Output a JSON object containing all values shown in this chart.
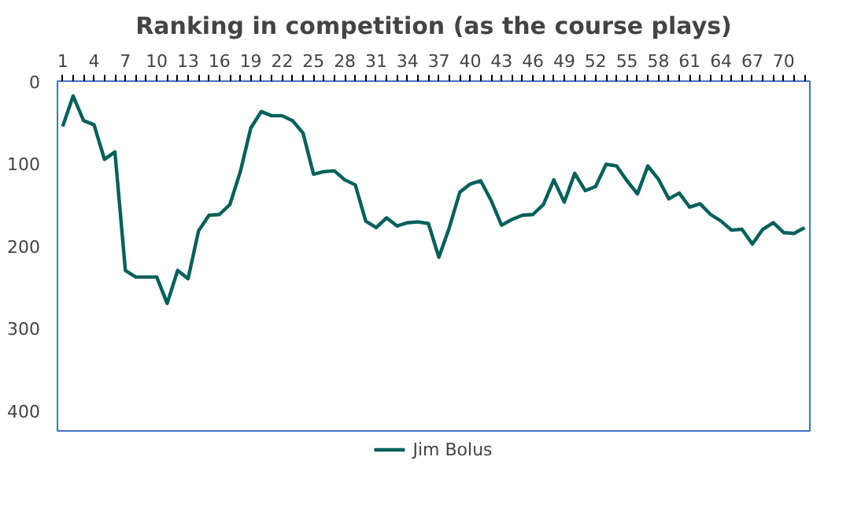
{
  "chart_data": {
    "type": "line",
    "title": "Ranking in competition (as the course plays)",
    "categories": [
      "1",
      null,
      null,
      "4",
      null,
      null,
      "7",
      null,
      null,
      "10",
      null,
      null,
      "13",
      null,
      null,
      "16",
      null,
      null,
      "19",
      null,
      null,
      "22",
      null,
      null,
      "25",
      null,
      null,
      "28",
      null,
      null,
      "31",
      null,
      null,
      "34",
      null,
      null,
      "37",
      null,
      null,
      "40",
      null,
      null,
      "43",
      null,
      null,
      "46",
      null,
      null,
      "49",
      null,
      null,
      "52",
      null,
      null,
      "55",
      null,
      null,
      "58",
      null,
      null,
      "61",
      null,
      null,
      "64",
      null,
      null,
      "67",
      null,
      null,
      "70",
      null,
      null
    ],
    "series": [
      {
        "name": "Jim Bolus",
        "color": "#00605a",
        "values": [
          55,
          18,
          48,
          53,
          95,
          86,
          230,
          238,
          238,
          238,
          270,
          230,
          240,
          182,
          163,
          162,
          150,
          110,
          57,
          37,
          42,
          42,
          48,
          63,
          113,
          110,
          109,
          120,
          126,
          170,
          178,
          166,
          176,
          172,
          171,
          173,
          214,
          178,
          135,
          125,
          121,
          145,
          175,
          168,
          163,
          162,
          150,
          120,
          147,
          112,
          133,
          128,
          101,
          103,
          121,
          137,
          103,
          119,
          143,
          136,
          153,
          149,
          162,
          170,
          181,
          180,
          198,
          180,
          172,
          184,
          185,
          178
        ]
      }
    ],
    "ylim": [
      425,
      0
    ],
    "yticks": [
      0,
      100,
      200,
      300,
      400
    ],
    "grid": false,
    "legend": "bottom",
    "marker": "none",
    "line_style": "solid"
  }
}
